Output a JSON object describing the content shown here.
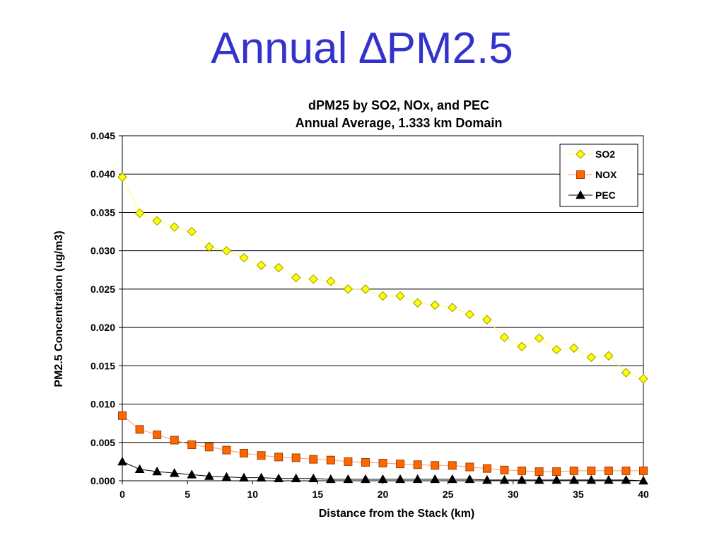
{
  "slide": {
    "title": "Annual ∆PM2.5"
  },
  "chart_data": {
    "type": "line",
    "title": "dPM25 by SO2, NOx, and PEC",
    "subtitle": "Annual Average, 1.333 km Domain",
    "xlabel": "Distance from the Stack (km)",
    "ylabel": "PM2.5 Concentration (ug/m3)",
    "xlim": [
      0,
      40
    ],
    "ylim": [
      0,
      0.045
    ],
    "x_ticks": [
      "0",
      "5",
      "10",
      "15",
      "20",
      "25",
      "30",
      "35",
      "40"
    ],
    "y_ticks": [
      "0.000",
      "0.005",
      "0.010",
      "0.015",
      "0.020",
      "0.025",
      "0.030",
      "0.035",
      "0.040",
      "0.045"
    ],
    "grid": "horizontal",
    "legend_position": "top-right",
    "x": [
      0,
      1.333,
      2.667,
      4,
      5.333,
      6.667,
      8,
      9.333,
      10.667,
      12,
      13.333,
      14.667,
      16,
      17.333,
      18.667,
      20,
      21.333,
      22.667,
      24,
      25.333,
      26.667,
      28,
      29.333,
      30.667,
      32,
      33.333,
      34.667,
      36,
      37.333,
      38.667,
      40
    ],
    "series": [
      {
        "name": "SO2",
        "color": "#ffff00",
        "edge_color": "#999900",
        "line_color": "#ffff66",
        "marker": "diamond",
        "values": [
          0.0396,
          0.0349,
          0.0339,
          0.0331,
          0.0325,
          0.0305,
          0.03,
          0.0291,
          0.0281,
          0.0278,
          0.0265,
          0.0263,
          0.026,
          0.025,
          0.025,
          0.0241,
          0.0241,
          0.0232,
          0.0229,
          0.0226,
          0.0217,
          0.021,
          0.0187,
          0.0175,
          0.0186,
          0.0171,
          0.0173,
          0.0161,
          0.0163,
          0.0141,
          0.0133
        ]
      },
      {
        "name": "NOX",
        "color": "#ff6600",
        "edge_color": "#a04000",
        "line_color": "#ff9966",
        "marker": "square",
        "values": [
          0.0085,
          0.0067,
          0.006,
          0.0053,
          0.0047,
          0.0044,
          0.004,
          0.0036,
          0.0033,
          0.0031,
          0.003,
          0.0028,
          0.0027,
          0.0025,
          0.0024,
          0.0023,
          0.0022,
          0.0021,
          0.002,
          0.002,
          0.0018,
          0.0016,
          0.0014,
          0.0013,
          0.0012,
          0.0012,
          0.0013,
          0.0013,
          0.0013,
          0.0013,
          0.0013
        ]
      },
      {
        "name": "PEC",
        "color": "#000000",
        "edge_color": "#000000",
        "line_color": "#000000",
        "marker": "triangle",
        "values": [
          0.0025,
          0.0015,
          0.0012,
          0.001,
          0.0008,
          0.0006,
          0.0005,
          0.0004,
          0.0004,
          0.0003,
          0.0003,
          0.0003,
          0.0002,
          0.0002,
          0.0002,
          0.0002,
          0.0002,
          0.0002,
          0.0002,
          0.0002,
          0.0002,
          0.0001,
          0.0001,
          0.0001,
          0.0001,
          0.0001,
          0.0001,
          0.0001,
          0.0001,
          0.0001,
          0.0
        ]
      }
    ]
  }
}
